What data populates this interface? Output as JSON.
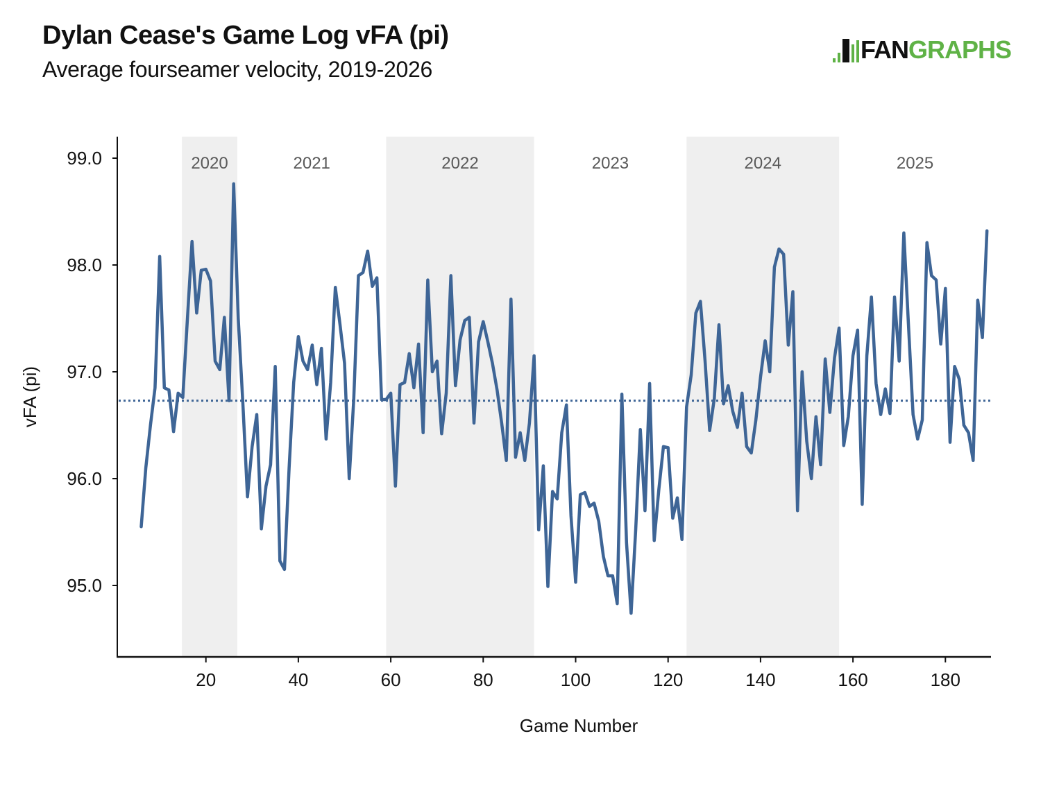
{
  "header": {
    "title": "Dylan Cease's Game Log vFA (pi)",
    "subtitle": "Average fourseamer velocity, 2019-2026"
  },
  "logo": {
    "prefix": "FAN",
    "suffix": "GRAPHS",
    "brand_color": "#5fb246"
  },
  "chart_data": {
    "type": "line",
    "title": "Dylan Cease's Game Log vFA (pi)",
    "subtitle": "Average fourseamer velocity, 2019-2026",
    "xlabel": "Game Number",
    "ylabel": "vFA (pi)",
    "xlim": [
      0.8,
      190
    ],
    "ylim": [
      94.4,
      99.2
    ],
    "x_ticks": [
      20,
      40,
      60,
      80,
      100,
      120,
      140,
      160,
      180
    ],
    "x_tick_labels": [
      "20",
      "40",
      "60",
      "80",
      "100",
      "120",
      "140",
      "160",
      "180"
    ],
    "y_ticks": [
      95.0,
      96.0,
      97.0,
      98.0,
      99.0
    ],
    "y_tick_labels": [
      "95.0",
      "96.0",
      "97.0",
      "98.0",
      "99.0"
    ],
    "grid": false,
    "line_color": "#3e6596",
    "band_color": "#efefef",
    "average": 96.73,
    "seasons": [
      {
        "label": "2020",
        "start": 14.8,
        "end": 26.8,
        "shaded": true
      },
      {
        "label": "2021",
        "start": 26.8,
        "end": 59,
        "shaded": false
      },
      {
        "label": "2022",
        "start": 59,
        "end": 91,
        "shaded": true
      },
      {
        "label": "2023",
        "start": 91,
        "end": 124,
        "shaded": false
      },
      {
        "label": "2024",
        "start": 124,
        "end": 157,
        "shaded": true
      },
      {
        "label": "2025",
        "start": 157,
        "end": 190,
        "shaded": false
      }
    ],
    "x": [
      6,
      7,
      8,
      9,
      10,
      11,
      12,
      13,
      14,
      15,
      16,
      17,
      18,
      19,
      20,
      21,
      22,
      23,
      24,
      25,
      26,
      27,
      28,
      29,
      30,
      31,
      32,
      33,
      34,
      35,
      36,
      37,
      38,
      39,
      40,
      41,
      42,
      43,
      44,
      45,
      46,
      47,
      48,
      49,
      50,
      51,
      52,
      53,
      54,
      55,
      56,
      57,
      58,
      59,
      60,
      61,
      62,
      63,
      64,
      65,
      66,
      67,
      68,
      69,
      70,
      71,
      72,
      73,
      74,
      75,
      76,
      77,
      78,
      79,
      80,
      81,
      82,
      83,
      84,
      85,
      86,
      87,
      88,
      89,
      90,
      91,
      92,
      93,
      94,
      95,
      96,
      97,
      98,
      99,
      100,
      101,
      102,
      103,
      104,
      105,
      106,
      107,
      108,
      109,
      110,
      111,
      112,
      113,
      114,
      115,
      116,
      117,
      118,
      119,
      120,
      121,
      122,
      123,
      124,
      125,
      126,
      127,
      128,
      129,
      130,
      131,
      132,
      133,
      134,
      135,
      136,
      137,
      138,
      139,
      140,
      141,
      142,
      143,
      144,
      145,
      146,
      147,
      148,
      149,
      150,
      151,
      152,
      153,
      154,
      155,
      156,
      157,
      158,
      159,
      160,
      161,
      162,
      163,
      164,
      165,
      166,
      167,
      168,
      169,
      170,
      171,
      172,
      173,
      174,
      175,
      176,
      177,
      178,
      179,
      180,
      181,
      182,
      183,
      184,
      185,
      186,
      187,
      188,
      189
    ],
    "values": [
      95.55,
      96.1,
      96.5,
      96.85,
      98.08,
      96.85,
      96.83,
      96.44,
      96.8,
      96.76,
      97.5,
      98.22,
      97.55,
      97.95,
      97.96,
      97.85,
      97.1,
      97.02,
      97.51,
      96.73,
      98.76,
      97.5,
      96.7,
      95.83,
      96.3,
      96.6,
      95.53,
      95.93,
      96.13,
      97.05,
      95.23,
      95.15,
      96.1,
      96.9,
      97.33,
      97.1,
      97.02,
      97.25,
      96.88,
      97.22,
      96.37,
      96.9,
      97.79,
      97.45,
      97.08,
      96.0,
      96.75,
      97.9,
      97.93,
      98.13,
      97.8,
      97.88,
      96.74,
      96.74,
      96.8,
      95.93,
      96.88,
      96.9,
      97.17,
      96.85,
      97.26,
      96.43,
      97.86,
      97.0,
      97.1,
      96.42,
      96.8,
      97.9,
      96.87,
      97.3,
      97.48,
      97.51,
      96.52,
      97.28,
      97.47,
      97.28,
      97.08,
      96.83,
      96.52,
      96.17,
      97.68,
      96.2,
      96.43,
      96.17,
      96.52,
      97.15,
      95.52,
      96.12,
      94.99,
      95.88,
      95.81,
      96.43,
      96.69,
      95.65,
      95.03,
      95.85,
      95.87,
      95.74,
      95.77,
      95.6,
      95.27,
      95.09,
      95.09,
      94.83,
      96.79,
      95.4,
      94.74,
      95.53,
      96.46,
      95.7,
      96.89,
      95.42,
      95.9,
      96.3,
      96.29,
      95.63,
      95.82,
      95.43,
      96.67,
      96.97,
      97.55,
      97.66,
      97.1,
      96.45,
      96.75,
      97.44,
      96.7,
      96.87,
      96.63,
      96.48,
      96.8,
      96.3,
      96.24,
      96.55,
      96.95,
      97.29,
      97.0,
      97.98,
      98.15,
      98.1,
      97.25,
      97.75,
      95.7,
      97.0,
      96.35,
      96.0,
      96.58,
      96.13,
      97.12,
      96.62,
      97.13,
      97.41,
      96.31,
      96.58,
      97.15,
      97.39,
      95.76,
      97.15,
      97.7,
      96.89,
      96.6,
      96.84,
      96.61,
      97.7,
      97.1,
      98.3,
      97.45,
      96.6,
      96.37,
      96.55,
      98.21,
      97.9,
      97.86,
      97.26,
      97.78,
      96.34,
      97.05,
      96.93,
      96.5,
      96.43,
      96.17,
      97.67,
      97.32,
      98.32
    ]
  }
}
